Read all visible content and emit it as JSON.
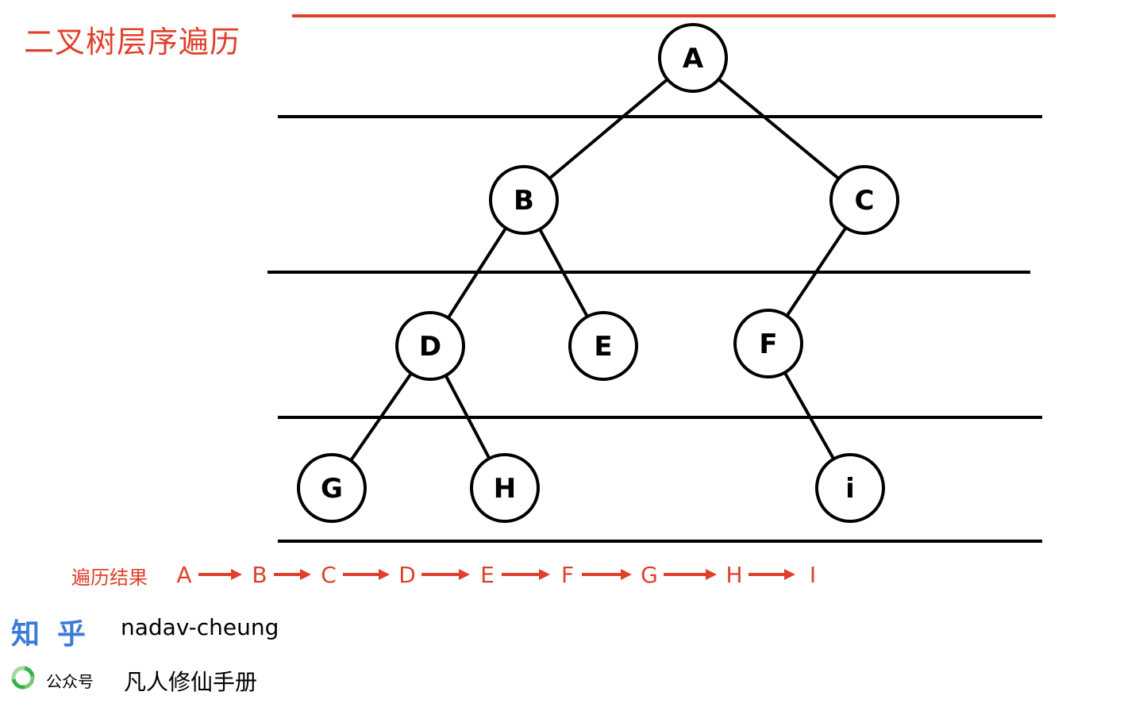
{
  "title": "二叉树层序遍历",
  "colors": {
    "accent": "#e0402a",
    "line": "#000000",
    "brand": "#3a7bd5",
    "wechat": "#2db34a"
  },
  "tree": {
    "nodes": [
      {
        "id": "A",
        "label": "A"
      },
      {
        "id": "B",
        "label": "B"
      },
      {
        "id": "C",
        "label": "C"
      },
      {
        "id": "D",
        "label": "D"
      },
      {
        "id": "E",
        "label": "E"
      },
      {
        "id": "F",
        "label": "F"
      },
      {
        "id": "G",
        "label": "G"
      },
      {
        "id": "H",
        "label": "H"
      },
      {
        "id": "I",
        "label": "i"
      }
    ],
    "edges": [
      [
        "A",
        "B"
      ],
      [
        "A",
        "C"
      ],
      [
        "B",
        "D"
      ],
      [
        "B",
        "E"
      ],
      [
        "C",
        "F"
      ],
      [
        "D",
        "G"
      ],
      [
        "D",
        "H"
      ],
      [
        "F",
        "I"
      ]
    ]
  },
  "result": {
    "label": "遍历结果",
    "sequence": [
      "A",
      "B",
      "C",
      "D",
      "E",
      "F",
      "G",
      "H",
      "I"
    ]
  },
  "footer": {
    "zhihu": "知乎",
    "author": "nadav-cheung",
    "wechat_icon": "wechat-icon",
    "gzh_label": "公众号",
    "gzh_name": "凡人修仙手册"
  }
}
